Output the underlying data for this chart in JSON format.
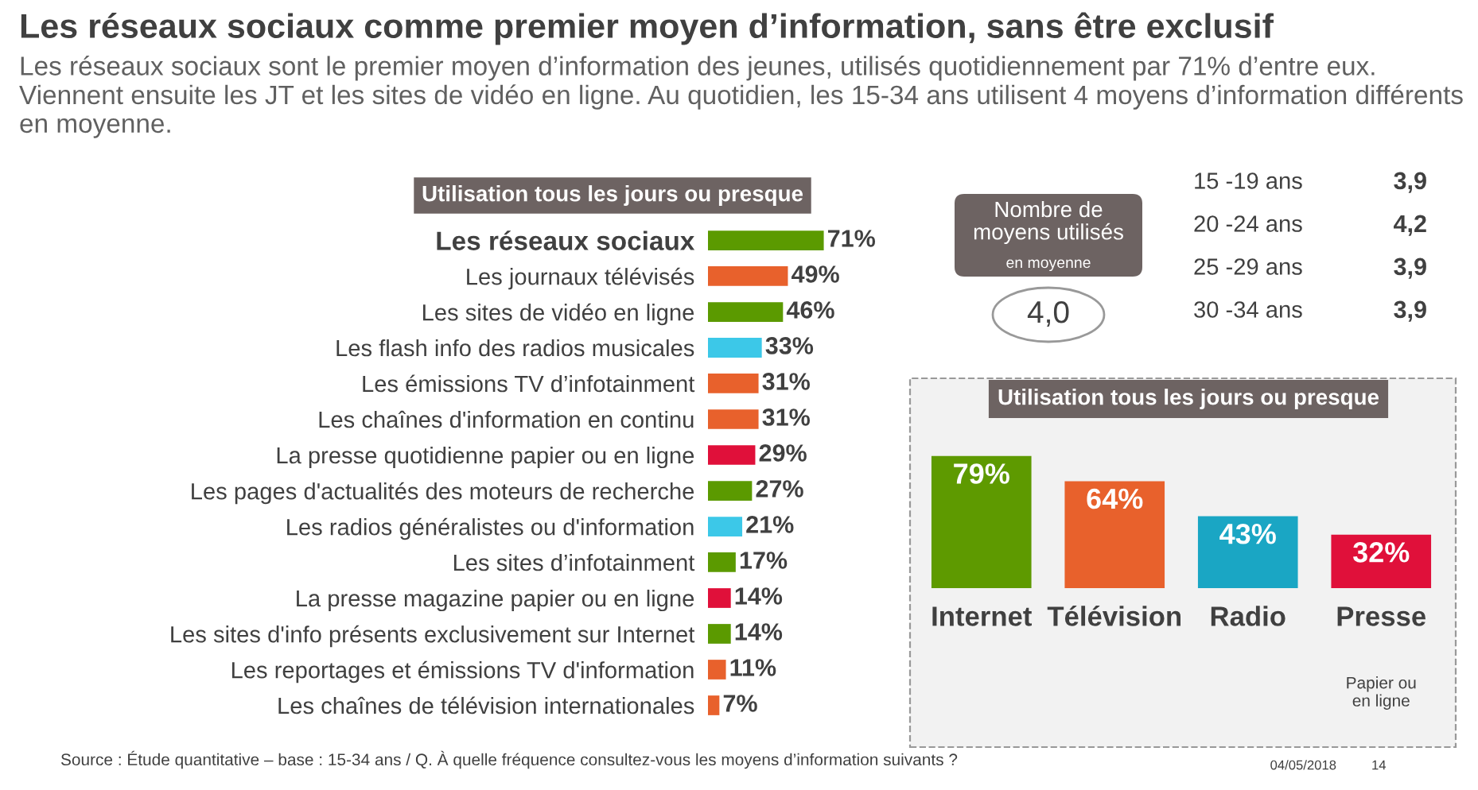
{
  "chart_data": [
    {
      "type": "bar",
      "orientation": "horizontal",
      "title": "Les réseaux sociaux comme premier moyen d’information, sans être exclusif",
      "subtitle": "Les réseaux sociaux sont le premier moyen d’information des jeunes, utilisés quotidiennement par 71% d’entre eux. Viennent ensuite les JT et les sites de vidéo en ligne. Au quotidien, les 15-34 ans utilisent 4 moyens d’information différents en moyenne.",
      "categories": [
        "Les réseaux sociaux",
        "Les journaux télévisés",
        "Les sites de vidéo en ligne",
        "Les flash info des radios musicales",
        "Les émissions TV d’infotainment",
        "Les chaînes d'information en continu",
        "La presse quotidienne papier ou en ligne",
        "Les pages d'actualités des moteurs de recherche",
        "Les radios généralistes ou d'information",
        "Les sites d’infotainment",
        "La presse magazine papier ou en ligne",
        "Les sites d'info présents exclusivement sur Internet",
        "Les reportages et émissions TV d'information",
        "Les chaînes de télévision internationales"
      ],
      "values": [
        71,
        49,
        46,
        33,
        31,
        31,
        29,
        27,
        21,
        17,
        14,
        14,
        11,
        7
      ],
      "colors": [
        "#5b9a00",
        "#e8612c",
        "#5b9a00",
        "#3cc8e8",
        "#e8612c",
        "#e8612c",
        "#e0103a",
        "#5b9a00",
        "#3cc8e8",
        "#5b9a00",
        "#e0103a",
        "#5b9a00",
        "#e8612c",
        "#e8612c"
      ],
      "value_labels": [
        "71%",
        "49%",
        "46%",
        "33%",
        "31%",
        "31%",
        "29%",
        "27%",
        "21%",
        "17%",
        "14%",
        "14%",
        "11%",
        "7%"
      ],
      "annotations": [
        "Utilisation tous les jours ou presque",
        "Source : Étude quantitative – base : 15-34 ans / Q. À quelle fréquence consultez-vous les moyens d’information suivants ?",
        "04/05/2018",
        "14"
      ]
    },
    {
      "type": "other",
      "title": "Nombre de\nmoyens utilisés",
      "subtitle": "en moyenne",
      "categories": [
        "15 -19 ans",
        "20 -24 ans",
        "25 -29 ans",
        "30 -34 ans"
      ],
      "values": [
        3.9,
        4.2,
        3.9,
        3.9
      ],
      "value_labels": [
        "3,9",
        "4,2",
        "3,9",
        "3,9"
      ],
      "annotations": [
        "4,0"
      ]
    },
    {
      "type": "bar",
      "title": "Utilisation tous les jours ou presque",
      "categories": [
        "Internet",
        "Télévision",
        "Radio",
        "Presse"
      ],
      "values": [
        79,
        64,
        43,
        32
      ],
      "colors": [
        "#5e9a00",
        "#e8612c",
        "#1aa6c4",
        "#e0103a"
      ],
      "value_labels": [
        "79%",
        "64%",
        "43%",
        "32%"
      ],
      "annotations": [
        "Papier ou\nen ligne"
      ]
    }
  ]
}
